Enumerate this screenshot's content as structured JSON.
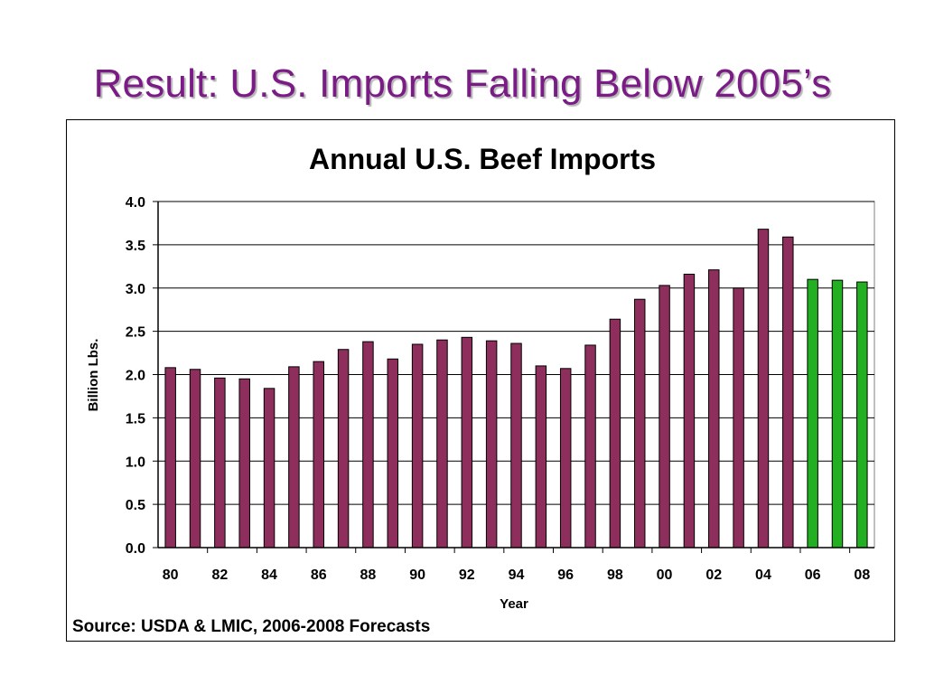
{
  "slide": {
    "title": "Result: U.S. Imports Falling Below 2005’s"
  },
  "colors": {
    "actual_bar": "#8e2e5c",
    "forecast_bar": "#22b022",
    "title": "#7a1b86"
  },
  "chart_data": {
    "type": "bar",
    "title": "Annual U.S. Beef Imports",
    "xlabel": "Year",
    "ylabel": "Billion Lbs.",
    "ylim": [
      0,
      4.0
    ],
    "yticks": [
      "0.0",
      "0.5",
      "1.0",
      "1.5",
      "2.0",
      "2.5",
      "3.0",
      "3.5",
      "4.0"
    ],
    "grid": true,
    "categories": [
      "80",
      "81",
      "82",
      "83",
      "84",
      "85",
      "86",
      "87",
      "88",
      "89",
      "90",
      "91",
      "92",
      "93",
      "94",
      "95",
      "96",
      "97",
      "98",
      "99",
      "00",
      "01",
      "02",
      "03",
      "04",
      "05",
      "06",
      "07",
      "08"
    ],
    "xtick_labels": [
      "80",
      "82",
      "84",
      "86",
      "88",
      "90",
      "92",
      "94",
      "96",
      "98",
      "00",
      "02",
      "04",
      "06",
      "08"
    ],
    "values": [
      2.08,
      2.06,
      1.96,
      1.95,
      1.84,
      2.09,
      2.15,
      2.29,
      2.38,
      2.18,
      2.35,
      2.4,
      2.43,
      2.39,
      2.36,
      2.1,
      2.07,
      2.34,
      2.64,
      2.87,
      3.03,
      3.16,
      3.21,
      3.0,
      3.68,
      3.59,
      3.1,
      3.09,
      3.07
    ],
    "forecast_categories": [
      "06",
      "07",
      "08"
    ],
    "source": "Source: USDA & LMIC, 2006-2008 Forecasts"
  }
}
